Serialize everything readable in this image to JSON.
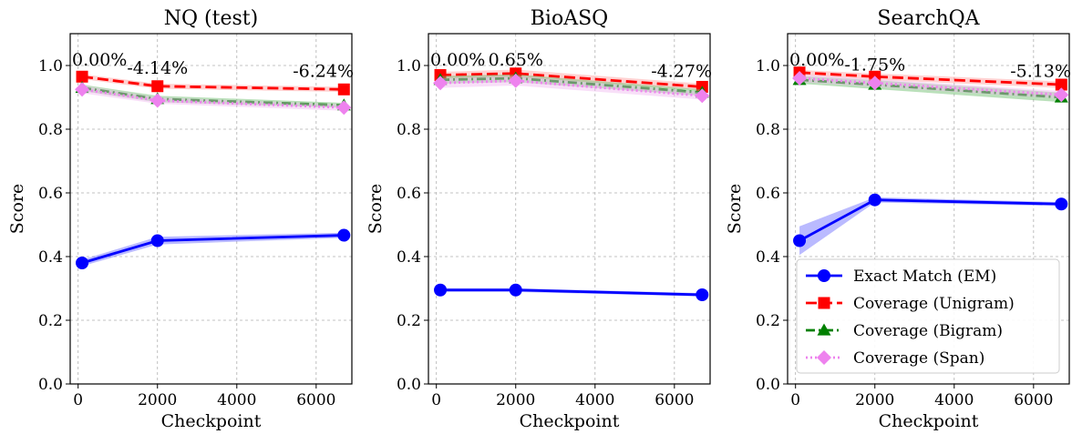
{
  "chart_data": [
    {
      "type": "line",
      "title": "NQ (test)",
      "xlabel": "Checkpoint",
      "ylabel": "Score",
      "xlim": [
        -200,
        6900
      ],
      "ylim": [
        0.0,
        1.1
      ],
      "xticks": [
        0,
        2000,
        4000,
        6000
      ],
      "yticks": [
        0.0,
        0.2,
        0.4,
        0.6,
        0.8,
        1.0
      ],
      "grid": true,
      "x": [
        100,
        2000,
        6700
      ],
      "series": [
        {
          "name": "Exact Match (EM)",
          "values": [
            0.38,
            0.45,
            0.467
          ],
          "band": [
            0.01,
            0.012,
            0.008
          ]
        },
        {
          "name": "Coverage (Unigram)",
          "values": [
            0.965,
            0.935,
            0.925
          ],
          "band": [
            0.008,
            0.008,
            0.008
          ]
        },
        {
          "name": "Coverage (Bigram)",
          "values": [
            0.93,
            0.895,
            0.875
          ],
          "band": [
            0.01,
            0.01,
            0.008
          ]
        },
        {
          "name": "Coverage (Span)",
          "values": [
            0.925,
            0.89,
            0.868
          ],
          "band": [
            0.012,
            0.01,
            0.01
          ]
        }
      ],
      "annotations": [
        {
          "text": "0.00%",
          "x": 100,
          "y": 1.0
        },
        {
          "text": "-4.14%",
          "x": 2000,
          "y": 0.975
        },
        {
          "text": "-6.24%",
          "x": 6700,
          "y": 0.965
        }
      ],
      "legend": null
    },
    {
      "type": "line",
      "title": "BioASQ",
      "xlabel": "Checkpoint",
      "ylabel": "Score",
      "xlim": [
        -200,
        6900
      ],
      "ylim": [
        0.0,
        1.1
      ],
      "xticks": [
        0,
        2000,
        4000,
        6000
      ],
      "yticks": [
        0.0,
        0.2,
        0.4,
        0.6,
        0.8,
        1.0
      ],
      "grid": true,
      "x": [
        100,
        2000,
        6700
      ],
      "series": [
        {
          "name": "Exact Match (EM)",
          "values": [
            0.295,
            0.295,
            0.28
          ],
          "band": [
            0.006,
            0.006,
            0.005
          ]
        },
        {
          "name": "Coverage (Unigram)",
          "values": [
            0.97,
            0.975,
            0.933
          ],
          "band": [
            0.01,
            0.012,
            0.01
          ]
        },
        {
          "name": "Coverage (Bigram)",
          "values": [
            0.955,
            0.96,
            0.915
          ],
          "band": [
            0.012,
            0.012,
            0.01
          ]
        },
        {
          "name": "Coverage (Span)",
          "values": [
            0.945,
            0.952,
            0.905
          ],
          "band": [
            0.015,
            0.015,
            0.012
          ]
        }
      ],
      "annotations": [
        {
          "text": "0.00%",
          "x": 100,
          "y": 1.0
        },
        {
          "text": "0.65%",
          "x": 2000,
          "y": 1.0
        },
        {
          "text": "-4.27%",
          "x": 6700,
          "y": 0.965
        }
      ],
      "legend": null
    },
    {
      "type": "line",
      "title": "SearchQA",
      "xlabel": "Checkpoint",
      "ylabel": "Score",
      "xlim": [
        -200,
        6900
      ],
      "ylim": [
        0.0,
        1.1
      ],
      "xticks": [
        0,
        2000,
        4000,
        6000
      ],
      "yticks": [
        0.0,
        0.2,
        0.4,
        0.6,
        0.8,
        1.0
      ],
      "grid": true,
      "x": [
        100,
        2000,
        6700
      ],
      "series": [
        {
          "name": "Exact Match (EM)",
          "values": [
            0.45,
            0.578,
            0.565
          ],
          "band": [
            0.045,
            0.008,
            0.006
          ]
        },
        {
          "name": "Coverage (Unigram)",
          "values": [
            0.978,
            0.965,
            0.94
          ],
          "band": [
            0.008,
            0.01,
            0.01
          ]
        },
        {
          "name": "Coverage (Bigram)",
          "values": [
            0.955,
            0.94,
            0.9
          ],
          "band": [
            0.012,
            0.014,
            0.015
          ]
        },
        {
          "name": "Coverage (Span)",
          "values": [
            0.96,
            0.945,
            0.908
          ],
          "band": [
            0.012,
            0.012,
            0.012
          ]
        }
      ],
      "annotations": [
        {
          "text": "0.00%",
          "x": 100,
          "y": 1.0
        },
        {
          "text": "-1.75%",
          "x": 2000,
          "y": 0.985
        },
        {
          "text": "-5.13%",
          "x": 6700,
          "y": 0.965
        }
      ],
      "legend": "lower-center"
    }
  ],
  "styles": [
    {
      "color": "#0000ff",
      "dash": "",
      "marker": "circle",
      "band_color": "#6666ff"
    },
    {
      "color": "#ff0000",
      "dash": "12 5",
      "marker": "square",
      "band_color": "#ff9999"
    },
    {
      "color": "#008000",
      "dash": "10 4 2 4",
      "marker": "triangle",
      "band_color": "#66bb66"
    },
    {
      "color": "#ee82ee",
      "dash": "2 3",
      "marker": "diamond",
      "band_color": "#f0b8f0"
    }
  ]
}
